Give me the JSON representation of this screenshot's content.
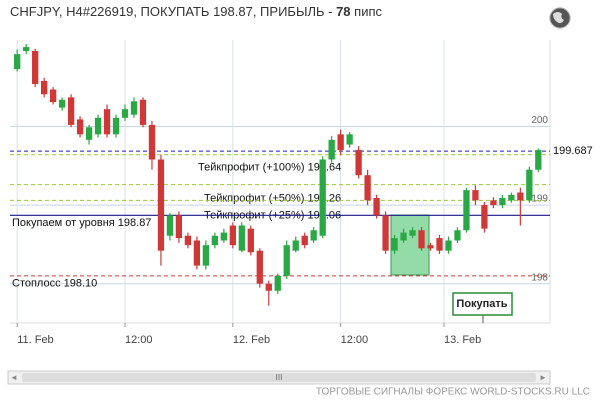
{
  "chart_data": {
    "type": "candlestick",
    "title": "CHFJPY, H4#226919, ПОКУПАТЬ 198.87, ПРИБЫЛЬ - ",
    "title_profit": "78",
    "title_unit": " пипс",
    "xlim": [
      -0.8,
      59.3
    ],
    "ylim": [
      197.5,
      201.1
    ],
    "yticks": [
      198,
      199,
      200
    ],
    "xticks": [
      {
        "value": 0,
        "label": "11. Feb"
      },
      {
        "value": 12,
        "label": "12:00"
      },
      {
        "value": 24,
        "label": "12. Feb"
      },
      {
        "value": 36,
        "label": "12:00"
      },
      {
        "value": 47.5,
        "label": "13. Feb"
      }
    ],
    "grid": true,
    "up_color": "#2aa845",
    "down_color": "#d03838",
    "open": [
      200.73,
      200.96,
      200.96,
      200.58,
      200.47,
      200.24,
      200.37,
      200.09,
      199.83,
      199.9,
      200.22,
      199.9,
      200.11,
      200.15,
      200.34,
      200.02,
      199.58,
      198.61,
      198.87,
      198.61,
      198.55,
      198.23,
      198.49,
      198.55,
      198.74,
      198.42,
      198.7,
      198.42,
      198.0,
      197.91,
      198.1,
      198.42,
      198.61,
      198.55,
      198.61,
      199.58,
      199.9,
      199.77,
      199.7,
      199.38,
      199.09,
      198.87,
      198.42,
      198.55,
      198.61,
      198.68,
      198.49,
      198.58,
      198.42,
      198.55,
      198.68,
      199.19,
      199.0,
      199.06,
      199.0,
      199.06,
      199.16,
      199.06,
      199.45
    ],
    "high": [
      200.98,
      201.05,
      200.99,
      200.62,
      200.5,
      200.37,
      200.41,
      200.13,
      200.02,
      200.15,
      200.28,
      200.15,
      200.28,
      200.37,
      200.37,
      200.07,
      199.64,
      198.9,
      198.92,
      198.65,
      198.6,
      198.55,
      198.65,
      198.7,
      198.78,
      198.78,
      198.74,
      198.45,
      198.04,
      198.13,
      198.55,
      198.6,
      198.65,
      198.72,
      199.62,
      199.88,
      199.96,
      199.93,
      199.75,
      199.45,
      199.13,
      198.92,
      198.62,
      198.7,
      198.72,
      198.72,
      198.52,
      198.62,
      198.6,
      198.72,
      199.22,
      199.25,
      199.04,
      199.1,
      199.13,
      199.16,
      199.22,
      199.49,
      199.72
    ],
    "low": [
      200.7,
      200.92,
      200.5,
      200.37,
      200.28,
      200.2,
      199.99,
      199.86,
      199.77,
      199.86,
      199.86,
      199.86,
      200.07,
      200.11,
      199.99,
      199.45,
      198.23,
      198.55,
      198.52,
      198.45,
      198.18,
      198.18,
      198.45,
      198.52,
      198.45,
      198.4,
      198.36,
      197.95,
      197.72,
      197.87,
      198.06,
      198.4,
      198.45,
      198.52,
      198.58,
      199.54,
      199.64,
      199.73,
      199.34,
      199.0,
      198.83,
      198.38,
      198.38,
      198.52,
      198.58,
      198.42,
      198.42,
      198.38,
      198.38,
      198.52,
      198.65,
      199.0,
      198.65,
      198.96,
      198.96,
      199.03,
      198.74,
      199.03,
      199.42
    ],
    "close": [
      200.92,
      201.01,
      200.54,
      200.41,
      200.31,
      200.34,
      200.02,
      199.9,
      199.99,
      200.11,
      199.9,
      200.11,
      200.22,
      200.32,
      200.02,
      199.58,
      198.42,
      198.87,
      198.58,
      198.49,
      198.23,
      198.49,
      198.61,
      198.65,
      198.49,
      198.74,
      198.4,
      198.0,
      197.91,
      198.1,
      198.49,
      198.55,
      198.49,
      198.68,
      199.58,
      199.83,
      199.7,
      199.9,
      199.38,
      199.06,
      198.87,
      198.42,
      198.58,
      198.65,
      198.68,
      198.45,
      198.45,
      198.42,
      198.55,
      198.68,
      199.19,
      199.06,
      198.7,
      199.0,
      199.09,
      199.13,
      199.06,
      199.45,
      199.7
    ],
    "levels": [
      {
        "label": "Тейкпрофит (+100%) 199.64",
        "value": 199.64,
        "color": "#9acd32"
      },
      {
        "label": "Тейкпрофит (+50%) 199.26",
        "value": 199.26,
        "color": "#9acd32"
      },
      {
        "label": "Тейкпрофит (+25%) 199.06",
        "value": 199.06,
        "color": "#9acd32"
      },
      {
        "label": "Покупаем от уровня 198.87",
        "value": 198.87,
        "color": "#1a1a8c"
      },
      {
        "label": "Стоплосс 198.10",
        "value": 198.1,
        "color": "#d03838"
      }
    ],
    "current_price": 199.687,
    "button": "Покупать",
    "footer": "ТОРГОВЫЕ СИГНАЛЫ ФОРЕКС WORLD-STOCKS.RU LLC",
    "scroll_grip": "III"
  }
}
